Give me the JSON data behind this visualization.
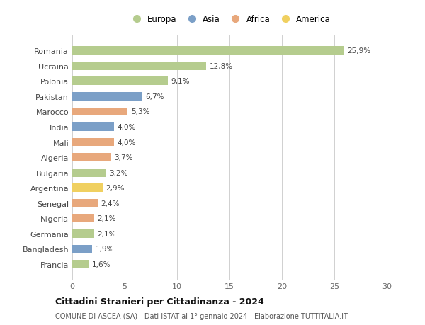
{
  "countries": [
    "Romania",
    "Ucraina",
    "Polonia",
    "Pakistan",
    "Marocco",
    "India",
    "Mali",
    "Algeria",
    "Bulgaria",
    "Argentina",
    "Senegal",
    "Nigeria",
    "Germania",
    "Bangladesh",
    "Francia"
  ],
  "values": [
    25.9,
    12.8,
    9.1,
    6.7,
    5.3,
    4.0,
    4.0,
    3.7,
    3.2,
    2.9,
    2.4,
    2.1,
    2.1,
    1.9,
    1.6
  ],
  "labels": [
    "25,9%",
    "12,8%",
    "9,1%",
    "6,7%",
    "5,3%",
    "4,0%",
    "4,0%",
    "3,7%",
    "3,2%",
    "2,9%",
    "2,4%",
    "2,1%",
    "2,1%",
    "1,9%",
    "1,6%"
  ],
  "continents": [
    "Europa",
    "Europa",
    "Europa",
    "Asia",
    "Africa",
    "Asia",
    "Africa",
    "Africa",
    "Europa",
    "America",
    "Africa",
    "Africa",
    "Europa",
    "Asia",
    "Europa"
  ],
  "colors": {
    "Europa": "#b5cc8e",
    "Asia": "#7b9fc7",
    "Africa": "#e8a87c",
    "America": "#f0d060"
  },
  "legend_order": [
    "Europa",
    "Asia",
    "Africa",
    "America"
  ],
  "xlim": [
    0,
    30
  ],
  "xticks": [
    0,
    5,
    10,
    15,
    20,
    25,
    30
  ],
  "title": "Cittadini Stranieri per Cittadinanza - 2024",
  "subtitle": "COMUNE DI ASCEA (SA) - Dati ISTAT al 1° gennaio 2024 - Elaborazione TUTTITALIA.IT",
  "background_color": "#ffffff",
  "grid_color": "#d0d0d0"
}
